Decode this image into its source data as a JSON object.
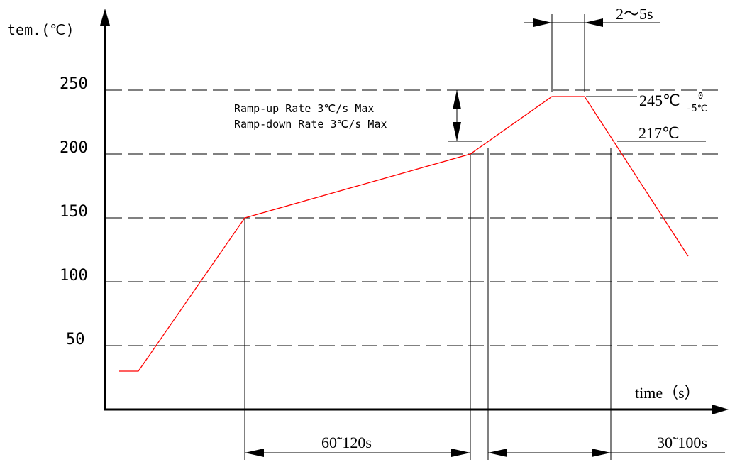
{
  "chart_data": {
    "type": "line",
    "title": "",
    "xlabel": "time（s）",
    "ylabel": "tem.(℃)",
    "y_ticks": [
      "250",
      "200",
      "150",
      "100",
      "50"
    ],
    "grid": "horizontal dashed",
    "series": [
      {
        "color": "#ff0000",
        "points": [
          {
            "t": 0,
            "temp": 30
          },
          {
            "t": 5,
            "temp": 30
          },
          {
            "t": 60,
            "temp": 150
          },
          {
            "t": 180,
            "temp": 200
          },
          {
            "t": 223,
            "temp": 245
          },
          {
            "t": 240,
            "temp": 245
          },
          {
            "t": 295,
            "temp": 120
          }
        ]
      }
    ],
    "annotations": {
      "ramp_up": "Ramp-up Rate 3℃/s Max",
      "ramp_down": "Ramp-down Rate 3℃/s Max",
      "peak_time": "2～5s",
      "peak_temp": "245℃",
      "peak_tol_upper": "0",
      "peak_tol_lower": "-5℃",
      "liquidus_temp": "217℃",
      "preheat_time": "60˜120s",
      "reflow_time": "30˜100s"
    }
  }
}
